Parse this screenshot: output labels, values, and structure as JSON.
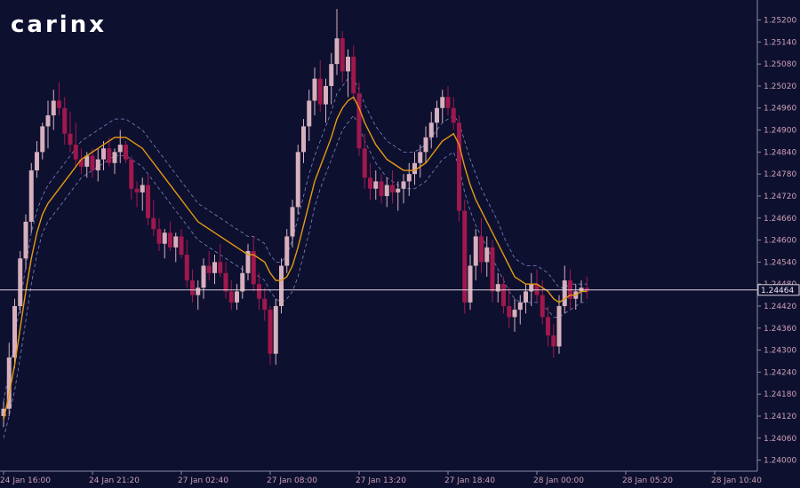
{
  "brand": {
    "logo_text": "carinx"
  },
  "current_price": {
    "value": 1.24464,
    "label": "1.24464"
  },
  "colors": {
    "background": "#0e1030",
    "axis": "#8a8aa6",
    "tick_text": "#c8a0b4",
    "bull": "#d6b0bc",
    "bear": "#a0184c",
    "ma": "#e69a12",
    "band": "#7a86c4",
    "price_line": "#dcd0d8"
  },
  "chart_data": {
    "type": "candlestick",
    "title": "",
    "xlabel": "",
    "ylabel": "",
    "ylim": [
      1.2397,
      1.2524
    ],
    "y_ticks": [
      1.24,
      1.2406,
      1.2412,
      1.2418,
      1.2424,
      1.243,
      1.2436,
      1.2442,
      1.2448,
      1.2454,
      1.246,
      1.2466,
      1.2472,
      1.2478,
      1.2484,
      1.249,
      1.2496,
      1.2502,
      1.2508,
      1.2514,
      1.252
    ],
    "y_tick_labels": [
      "1.24000",
      "1.24060",
      "1.24120",
      "1.24180",
      "1.24240",
      "1.24300",
      "1.24360",
      "1.24420",
      "1.24480",
      "1.24540",
      "1.24600",
      "1.24660",
      "1.24720",
      "1.24780",
      "1.24840",
      "1.24900",
      "1.24960",
      "1.25020",
      "1.25080",
      "1.25140",
      "1.25200"
    ],
    "x_tick_labels": [
      "24 Jan 16:00",
      "24 Jan 21:20",
      "27 Jan 02:40",
      "27 Jan 08:00",
      "27 Jan 13:20",
      "27 Jan 18:40",
      "28 Jan 00:00",
      "28 Jan 05:20",
      "28 Jan 10:40"
    ],
    "candles_per_label": 16,
    "ohlc": [
      [
        1.2412,
        1.2416,
        1.2409,
        1.2414
      ],
      [
        1.2414,
        1.2432,
        1.2412,
        1.2428
      ],
      [
        1.2428,
        1.2444,
        1.2425,
        1.2442
      ],
      [
        1.2442,
        1.2457,
        1.244,
        1.2455
      ],
      [
        1.2455,
        1.2467,
        1.2452,
        1.2465
      ],
      [
        1.2465,
        1.2481,
        1.2462,
        1.2479
      ],
      [
        1.2479,
        1.2487,
        1.2477,
        1.2484
      ],
      [
        1.2484,
        1.2492,
        1.2482,
        1.2491
      ],
      [
        1.2491,
        1.2498,
        1.2485,
        1.2494
      ],
      [
        1.2494,
        1.2501,
        1.249,
        1.2498
      ],
      [
        1.2498,
        1.2503,
        1.2494,
        1.2496
      ],
      [
        1.2496,
        1.2499,
        1.2486,
        1.2489
      ],
      [
        1.2489,
        1.2495,
        1.2484,
        1.2486
      ],
      [
        1.2486,
        1.2492,
        1.248,
        1.2482
      ],
      [
        1.2482,
        1.2485,
        1.2478,
        1.248
      ],
      [
        1.248,
        1.2484,
        1.2477,
        1.2483
      ],
      [
        1.2483,
        1.2485,
        1.2477,
        1.2479
      ],
      [
        1.2479,
        1.2485,
        1.2476,
        1.2482
      ],
      [
        1.2482,
        1.2487,
        1.2479,
        1.2485
      ],
      [
        1.2485,
        1.2488,
        1.248,
        1.2481
      ],
      [
        1.2481,
        1.2485,
        1.2478,
        1.2484
      ],
      [
        1.2484,
        1.249,
        1.2481,
        1.2486
      ],
      [
        1.2486,
        1.2487,
        1.2481,
        1.2482
      ],
      [
        1.2482,
        1.2483,
        1.2471,
        1.2474
      ],
      [
        1.2474,
        1.2476,
        1.2469,
        1.2473
      ],
      [
        1.2473,
        1.2477,
        1.2468,
        1.2475
      ],
      [
        1.2475,
        1.2478,
        1.2464,
        1.2466
      ],
      [
        1.2466,
        1.2471,
        1.2461,
        1.2463
      ],
      [
        1.2463,
        1.2466,
        1.2457,
        1.2459
      ],
      [
        1.2459,
        1.2463,
        1.2455,
        1.2462
      ],
      [
        1.2462,
        1.2465,
        1.2457,
        1.2458
      ],
      [
        1.2458,
        1.2462,
        1.2454,
        1.2461
      ],
      [
        1.2461,
        1.2463,
        1.2455,
        1.2456
      ],
      [
        1.2456,
        1.246,
        1.2447,
        1.2449
      ],
      [
        1.2449,
        1.2452,
        1.2443,
        1.2445
      ],
      [
        1.2445,
        1.2449,
        1.2441,
        1.2447
      ],
      [
        1.2447,
        1.2455,
        1.2444,
        1.2453
      ],
      [
        1.2453,
        1.2457,
        1.2449,
        1.2451
      ],
      [
        1.2451,
        1.2456,
        1.2448,
        1.2454
      ],
      [
        1.2454,
        1.2459,
        1.245,
        1.2451
      ],
      [
        1.2451,
        1.2454,
        1.2444,
        1.2446
      ],
      [
        1.2446,
        1.2449,
        1.2441,
        1.2443
      ],
      [
        1.2443,
        1.2448,
        1.2441,
        1.2446
      ],
      [
        1.2446,
        1.2453,
        1.2444,
        1.2451
      ],
      [
        1.2451,
        1.2459,
        1.2449,
        1.2457
      ],
      [
        1.2457,
        1.2461,
        1.2446,
        1.2448
      ],
      [
        1.2448,
        1.2451,
        1.2441,
        1.2444
      ],
      [
        1.2444,
        1.2447,
        1.2438,
        1.2441
      ],
      [
        1.2441,
        1.2442,
        1.2426,
        1.2429
      ],
      [
        1.2429,
        1.2444,
        1.2426,
        1.2442
      ],
      [
        1.2442,
        1.2455,
        1.244,
        1.2453
      ],
      [
        1.2453,
        1.2463,
        1.2451,
        1.2461
      ],
      [
        1.2461,
        1.2471,
        1.2458,
        1.2469
      ],
      [
        1.2469,
        1.2486,
        1.2467,
        1.2484
      ],
      [
        1.2484,
        1.2493,
        1.2481,
        1.2491
      ],
      [
        1.2491,
        1.2501,
        1.2487,
        1.2498
      ],
      [
        1.2498,
        1.2507,
        1.2494,
        1.2504
      ],
      [
        1.2504,
        1.2509,
        1.2495,
        1.2497
      ],
      [
        1.2497,
        1.2504,
        1.2492,
        1.2502
      ],
      [
        1.2502,
        1.2511,
        1.2497,
        1.2508
      ],
      [
        1.2508,
        1.2523,
        1.2505,
        1.2515
      ],
      [
        1.2515,
        1.2517,
        1.2503,
        1.2506
      ],
      [
        1.2506,
        1.2512,
        1.2499,
        1.251
      ],
      [
        1.251,
        1.2513,
        1.2498,
        1.25
      ],
      [
        1.25,
        1.2503,
        1.2483,
        1.2485
      ],
      [
        1.2485,
        1.2489,
        1.2474,
        1.2477
      ],
      [
        1.2477,
        1.2481,
        1.2471,
        1.2474
      ],
      [
        1.2474,
        1.2479,
        1.2471,
        1.2476
      ],
      [
        1.2476,
        1.2478,
        1.247,
        1.2472
      ],
      [
        1.2472,
        1.2477,
        1.2469,
        1.2475
      ],
      [
        1.2475,
        1.2479,
        1.247,
        1.2473
      ],
      [
        1.2473,
        1.2476,
        1.2468,
        1.2474
      ],
      [
        1.2474,
        1.2478,
        1.247,
        1.2476
      ],
      [
        1.2476,
        1.2481,
        1.2472,
        1.2478
      ],
      [
        1.2478,
        1.2484,
        1.2475,
        1.2481
      ],
      [
        1.2481,
        1.2486,
        1.2477,
        1.2484
      ],
      [
        1.2484,
        1.2491,
        1.2481,
        1.2488
      ],
      [
        1.2488,
        1.2495,
        1.2485,
        1.2492
      ],
      [
        1.2492,
        1.2498,
        1.2488,
        1.2496
      ],
      [
        1.2496,
        1.2501,
        1.2492,
        1.2499
      ],
      [
        1.2499,
        1.2502,
        1.2494,
        1.2496
      ],
      [
        1.2496,
        1.2499,
        1.249,
        1.2492
      ],
      [
        1.2492,
        1.2494,
        1.2465,
        1.2468
      ],
      [
        1.2468,
        1.2471,
        1.244,
        1.2443
      ],
      [
        1.2443,
        1.2456,
        1.2441,
        1.2453
      ],
      [
        1.2453,
        1.2463,
        1.2449,
        1.2461
      ],
      [
        1.2461,
        1.2466,
        1.2451,
        1.2454
      ],
      [
        1.2454,
        1.2461,
        1.245,
        1.2458
      ],
      [
        1.2458,
        1.246,
        1.2443,
        1.2446
      ],
      [
        1.2446,
        1.2451,
        1.2443,
        1.2448
      ],
      [
        1.2448,
        1.245,
        1.244,
        1.2442
      ],
      [
        1.2442,
        1.2447,
        1.2436,
        1.2439
      ],
      [
        1.2439,
        1.2444,
        1.2435,
        1.2441
      ],
      [
        1.2441,
        1.2445,
        1.2437,
        1.2443
      ],
      [
        1.2443,
        1.2448,
        1.244,
        1.2446
      ],
      [
        1.2446,
        1.2451,
        1.2442,
        1.2448
      ],
      [
        1.2448,
        1.2452,
        1.2443,
        1.2445
      ],
      [
        1.2445,
        1.2449,
        1.2437,
        1.2439
      ],
      [
        1.2439,
        1.2442,
        1.2431,
        1.2434
      ],
      [
        1.2434,
        1.2437,
        1.2428,
        1.2431
      ],
      [
        1.2431,
        1.2445,
        1.2429,
        1.2442
      ],
      [
        1.2442,
        1.2453,
        1.244,
        1.2449
      ],
      [
        1.2449,
        1.2452,
        1.2441,
        1.2444
      ],
      [
        1.2444,
        1.2448,
        1.2441,
        1.2446
      ],
      [
        1.2446,
        1.2449,
        1.2443,
        1.2447
      ],
      [
        1.2447,
        1.245,
        1.2444,
        1.2446
      ]
    ],
    "series": [
      {
        "name": "",
        "values": [
          1.2411,
          1.2418,
          1.2426,
          1.2436,
          1.2446,
          1.2455,
          1.2462,
          1.2467,
          1.247,
          1.2472,
          1.2474,
          1.2476,
          1.2478,
          1.248,
          1.2482,
          1.2483,
          1.2484,
          1.2485,
          1.2486,
          1.2487,
          1.2488,
          1.2488,
          1.2488,
          1.2487,
          1.2486,
          1.2485,
          1.2483,
          1.2481,
          1.2479,
          1.2477,
          1.2475,
          1.2473,
          1.2471,
          1.2469,
          1.2467,
          1.2465,
          1.2464,
          1.2463,
          1.2462,
          1.2461,
          1.246,
          1.2459,
          1.2458,
          1.2457,
          1.2456,
          1.2456,
          1.2455,
          1.2454,
          1.2451,
          1.2449,
          1.2449,
          1.245,
          1.2453,
          1.2458,
          1.2464,
          1.247,
          1.2476,
          1.248,
          1.2484,
          1.2488,
          1.2493,
          1.2496,
          1.2498,
          1.2499,
          1.2496,
          1.2492,
          1.2489,
          1.2486,
          1.2484,
          1.2482,
          1.2481,
          1.248,
          1.2479,
          1.2479,
          1.2479,
          1.248,
          1.2481,
          1.2483,
          1.2485,
          1.2487,
          1.2488,
          1.2489,
          1.2486,
          1.248,
          1.2475,
          1.2471,
          1.2468,
          1.2465,
          1.2462,
          1.2459,
          1.2456,
          1.2453,
          1.245,
          1.2449,
          1.2448,
          1.2448,
          1.2448,
          1.2447,
          1.2446,
          1.2444,
          1.2443,
          1.2444,
          1.2445,
          1.2445,
          1.2446,
          1.2446
        ]
      },
      {
        "name": "",
        "values": [
          1.2416,
          1.2424,
          1.2433,
          1.2443,
          1.2453,
          1.2462,
          1.2468,
          1.2472,
          1.2475,
          1.2477,
          1.2479,
          1.2481,
          1.2483,
          1.2485,
          1.2487,
          1.2488,
          1.2489,
          1.249,
          1.2491,
          1.2492,
          1.2493,
          1.2493,
          1.2493,
          1.2492,
          1.2491,
          1.249,
          1.2488,
          1.2486,
          1.2484,
          1.2482,
          1.248,
          1.2478,
          1.2476,
          1.2474,
          1.2472,
          1.247,
          1.2469,
          1.2468,
          1.2467,
          1.2466,
          1.2465,
          1.2464,
          1.2463,
          1.2462,
          1.2461,
          1.2461,
          1.246,
          1.2459,
          1.2456,
          1.2454,
          1.2454,
          1.2456,
          1.246,
          1.2466,
          1.2472,
          1.2478,
          1.2483,
          1.2487,
          1.2491,
          1.2495,
          1.25,
          1.2502,
          1.2504,
          1.2504,
          1.2501,
          1.2497,
          1.2494,
          1.2491,
          1.2489,
          1.2487,
          1.2486,
          1.2485,
          1.2484,
          1.2484,
          1.2484,
          1.2485,
          1.2486,
          1.2488,
          1.249,
          1.2492,
          1.2493,
          1.2494,
          1.2492,
          1.2487,
          1.2482,
          1.2478,
          1.2474,
          1.2471,
          1.2468,
          1.2465,
          1.2461,
          1.2458,
          1.2455,
          1.2454,
          1.2453,
          1.2453,
          1.2453,
          1.2452,
          1.2451,
          1.2449,
          1.2447,
          1.2447,
          1.2448,
          1.2448,
          1.2448,
          1.2448
        ]
      },
      {
        "name": "",
        "values": [
          1.2406,
          1.2412,
          1.2419,
          1.2428,
          1.2438,
          1.2448,
          1.2456,
          1.2462,
          1.2465,
          1.2467,
          1.2469,
          1.2471,
          1.2473,
          1.2475,
          1.2477,
          1.2478,
          1.2479,
          1.248,
          1.2481,
          1.2482,
          1.2483,
          1.2483,
          1.2483,
          1.2482,
          1.2481,
          1.248,
          1.2478,
          1.2476,
          1.2474,
          1.2472,
          1.247,
          1.2468,
          1.2466,
          1.2464,
          1.2462,
          1.246,
          1.2459,
          1.2458,
          1.2457,
          1.2456,
          1.2455,
          1.2454,
          1.2453,
          1.2452,
          1.2451,
          1.2451,
          1.245,
          1.2449,
          1.2446,
          1.2444,
          1.2443,
          1.2444,
          1.2446,
          1.245,
          1.2456,
          1.2462,
          1.2469,
          1.2474,
          1.2478,
          1.2482,
          1.2486,
          1.249,
          1.2492,
          1.2494,
          1.2491,
          1.2487,
          1.2484,
          1.2481,
          1.2479,
          1.2477,
          1.2476,
          1.2475,
          1.2474,
          1.2474,
          1.2474,
          1.2475,
          1.2476,
          1.2478,
          1.248,
          1.2482,
          1.2483,
          1.2484,
          1.248,
          1.2473,
          1.2468,
          1.2464,
          1.2461,
          1.2458,
          1.2455,
          1.2452,
          1.2449,
          1.2446,
          1.2444,
          1.2443,
          1.2443,
          1.2443,
          1.2443,
          1.2442,
          1.2441,
          1.2439,
          1.2439,
          1.244,
          1.2441,
          1.2442,
          1.2443,
          1.2443
        ]
      }
    ]
  }
}
